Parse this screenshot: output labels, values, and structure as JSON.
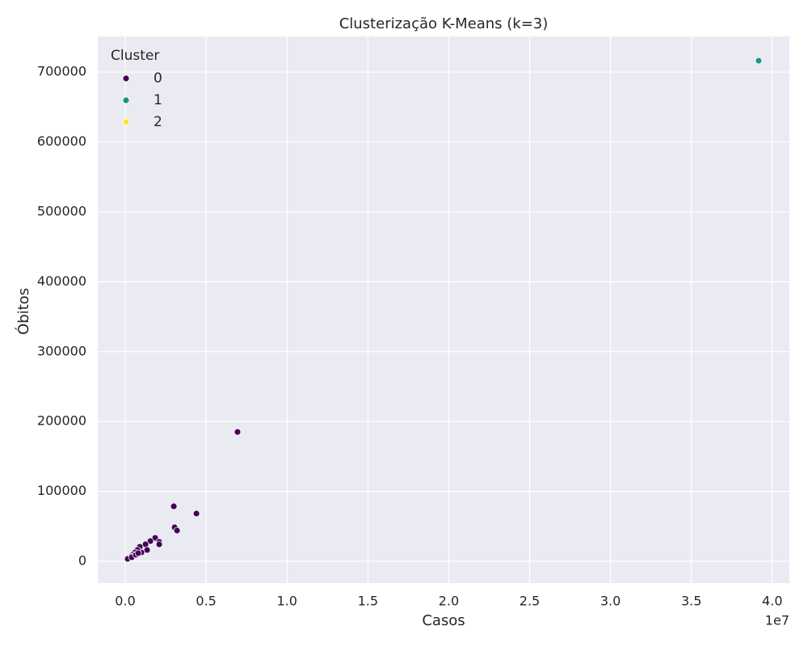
{
  "chart_data": {
    "type": "scatter",
    "title": "Clusterização K-Means (k=3)",
    "x_label": "Casos",
    "y_label": "Óbitos",
    "x_offset_label": "1e7",
    "legend_title": "Cluster",
    "legend_position": "upper left",
    "grid": true,
    "xlim": [
      -1700000,
      41060000
    ],
    "ylim": [
      -31200,
      751000
    ],
    "xticks": [
      {
        "value": 0,
        "label": "0.0"
      },
      {
        "value": 5000000,
        "label": "0.5"
      },
      {
        "value": 10000000,
        "label": "1.0"
      },
      {
        "value": 15000000,
        "label": "1.5"
      },
      {
        "value": 20000000,
        "label": "2.0"
      },
      {
        "value": 25000000,
        "label": "2.5"
      },
      {
        "value": 30000000,
        "label": "3.0"
      },
      {
        "value": 35000000,
        "label": "3.5"
      },
      {
        "value": 40000000,
        "label": "4.0"
      }
    ],
    "yticks": [
      0,
      100000,
      200000,
      300000,
      400000,
      500000,
      600000,
      700000
    ],
    "series": [
      {
        "name": "0",
        "color": "#440154",
        "x": [
          6940000,
          3000000,
          4400000,
          3050000,
          3200000,
          1850000,
          2100000,
          2100000,
          1550000,
          1250000,
          1350000,
          900000,
          1000000,
          750000,
          600000,
          450000,
          350000,
          250000,
          150000,
          400000,
          650000,
          800000
        ],
        "y": [
          185100,
          78700,
          68300,
          48600,
          44000,
          33500,
          27800,
          24300,
          28900,
          24300,
          16200,
          20800,
          12700,
          16200,
          12700,
          9300,
          6900,
          4600,
          3500,
          5800,
          9300,
          11600
        ]
      },
      {
        "name": "1",
        "color": "#21918c",
        "x": [
          39160000
        ],
        "y": [
          716200
        ]
      },
      {
        "name": "2",
        "color": "#fde725",
        "x": [],
        "y": []
      }
    ]
  }
}
